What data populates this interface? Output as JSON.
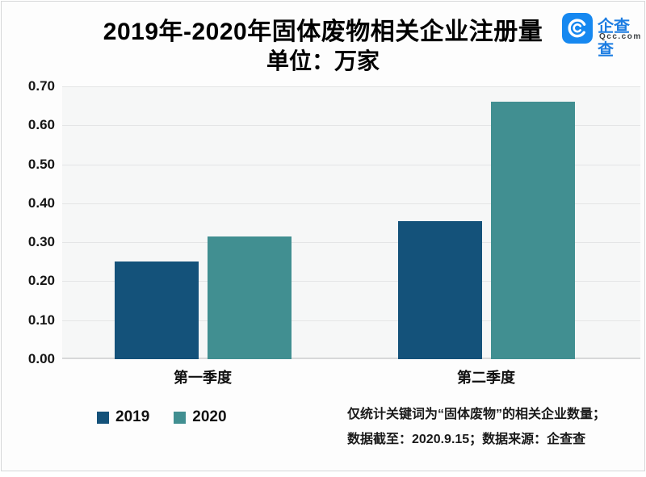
{
  "header": {
    "title": "2019年-2020年固体废物相关企业注册量",
    "subtitle": "单位：万家",
    "logo": {
      "name": "企查查",
      "domain": "Qcc.com",
      "badge_color": "#1688F0",
      "name_color": "#1D7DE2",
      "domain_color": "#3C4043"
    }
  },
  "chart_data": {
    "type": "bar",
    "title": "2019年-2020年固体废物相关企业注册量",
    "unit_label": "单位：万家",
    "categories": [
      "第一季度",
      "第二季度"
    ],
    "series": [
      {
        "name": "2019",
        "color": "#14527A",
        "values": [
          0.25,
          0.355
        ]
      },
      {
        "name": "2020",
        "color": "#418F91",
        "values": [
          0.315,
          0.66
        ]
      }
    ],
    "ylim": [
      0,
      0.7
    ],
    "ytick_step": 0.1,
    "yticks": [
      "0.70",
      "0.60",
      "0.50",
      "0.40",
      "0.30",
      "0.20",
      "0.10",
      "0.00"
    ],
    "grid": true,
    "legend_position": "bottom-left",
    "plot_bg": "#f6f7f7",
    "grid_color": "#e4e5e6"
  },
  "footer": {
    "line1": "仅统计关键词为“固体废物”的相关企业数量；",
    "line2": "数据截至：2020.9.15；数据来源：企查查"
  }
}
